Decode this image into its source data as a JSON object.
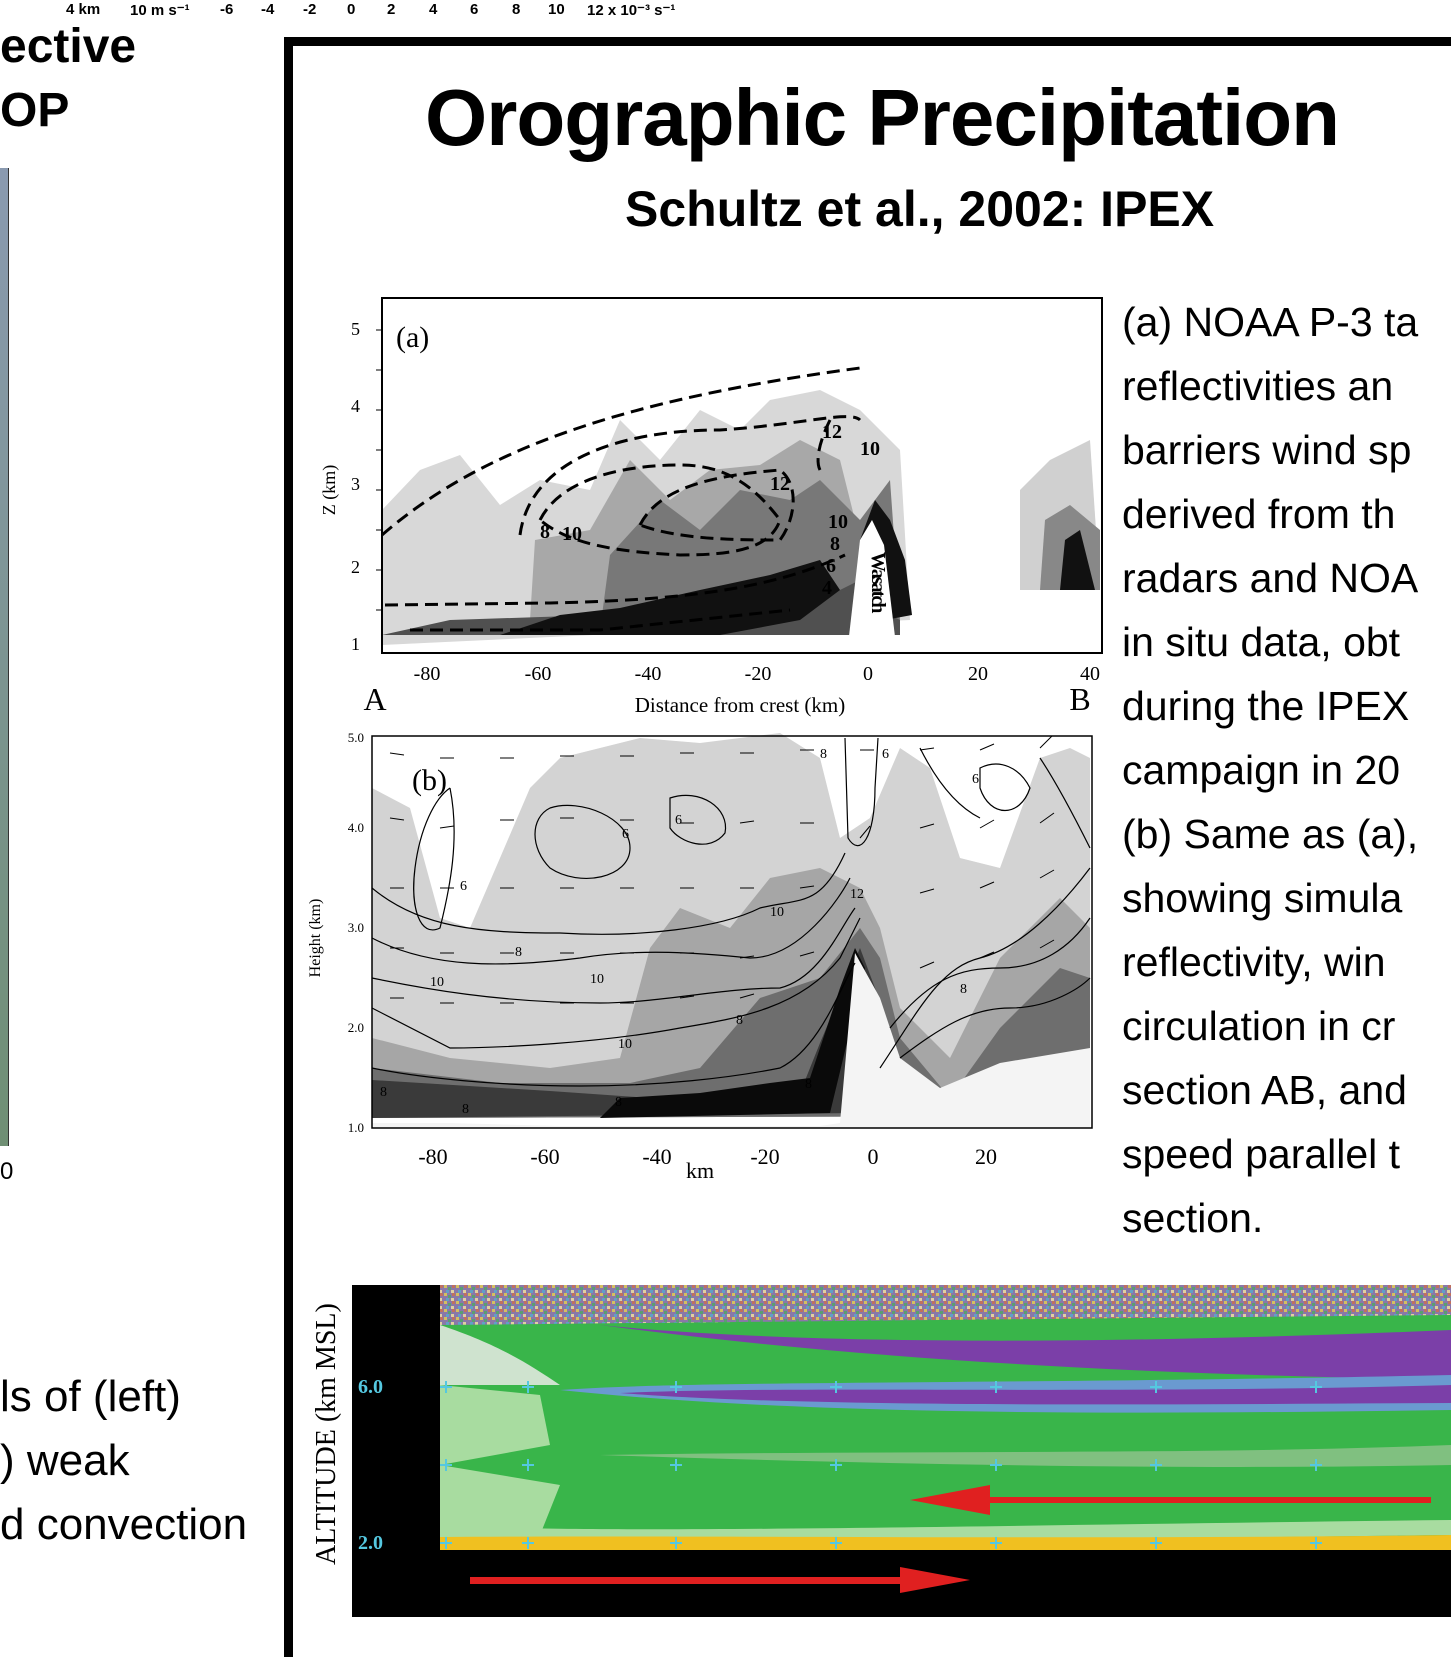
{
  "top_scale": {
    "items": [
      "4 km",
      "10 m s⁻¹",
      "-6",
      "-4",
      "-2",
      "0",
      "2",
      "4",
      "6",
      "8",
      "10",
      "12 x 10⁻³ s⁻¹"
    ]
  },
  "left_panel": {
    "title_line1": "ective",
    "title_line2": "OP",
    "tick_label": "0",
    "caption_lines": [
      "ls of (left)",
      ") weak",
      "d convection"
    ]
  },
  "slide": {
    "title": "Orographic Precipitation",
    "subtitle": "Schultz et al., 2002: IPEX",
    "caption_lines": [
      "(a) NOAA P-3 ta",
      "reflectivities an",
      "barriers wind sp",
      "derived from th",
      "radars and NOA",
      "in situ data, obt",
      "during the IPEX",
      "campaign in 20",
      "(b) Same as (a),",
      "showing simula",
      "reflectivity, win",
      "circulation in cr",
      "section AB, and",
      "speed parallel t",
      "section."
    ]
  },
  "figure_a": {
    "panel_label": "(a)",
    "ylabel": "Z (km)",
    "xlabel": "Distance from crest (km)",
    "yticks": [
      "1",
      "2",
      "3",
      "4",
      "5"
    ],
    "xticks": [
      "-80",
      "-60",
      "-40",
      "-20",
      "0",
      "20",
      "40"
    ],
    "endpoint_left": "A",
    "endpoint_right": "B",
    "mountain_label": "Wasatch",
    "contour_labels": [
      "8",
      "10",
      "12",
      "10",
      "12",
      "10",
      "8",
      "6",
      "4"
    ]
  },
  "figure_b": {
    "panel_label": "(b)",
    "ylabel": "Height (km)",
    "xlabel": "km",
    "yticks": [
      "1.0",
      "2.0",
      "3.0",
      "4.0",
      "5.0"
    ],
    "xticks": [
      "-80",
      "-60",
      "-40",
      "-20",
      "0",
      "20"
    ],
    "contour_labels": [
      "6",
      "6",
      "6",
      "8",
      "6",
      "8",
      "10",
      "10",
      "12",
      "10",
      "10",
      "8",
      "8",
      "8",
      "8",
      "8",
      "8",
      "6"
    ]
  },
  "radar": {
    "ylabel": "ALTITUDE (km MSL)",
    "yticks": [
      "6.0",
      "2.0"
    ],
    "arrow_color": "#e02020",
    "colors": [
      "#7b3fa8",
      "#5bb0d8",
      "#39b54a",
      "#a8dca0",
      "#f0c020",
      "#000000"
    ]
  }
}
